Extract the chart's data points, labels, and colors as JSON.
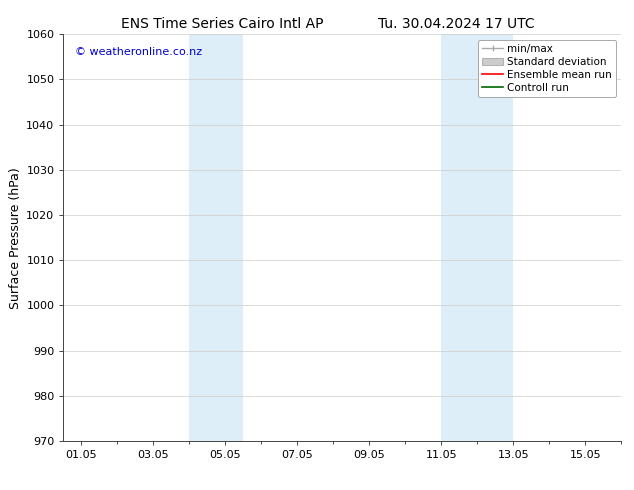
{
  "title_left": "ENS Time Series Cairo Intl AP",
  "title_right": "Tu. 30.04.2024 17 UTC",
  "ylabel": "Surface Pressure (hPa)",
  "ylim": [
    970,
    1060
  ],
  "yticks": [
    970,
    980,
    990,
    1000,
    1010,
    1020,
    1030,
    1040,
    1050,
    1060
  ],
  "xtick_labels": [
    "01.05",
    "03.05",
    "05.05",
    "07.05",
    "09.05",
    "11.05",
    "13.05",
    "15.05"
  ],
  "xtick_positions": [
    1,
    3,
    5,
    7,
    9,
    11,
    13,
    15
  ],
  "xlim": [
    0.5,
    16.0
  ],
  "shaded_bands": [
    {
      "x_start": 4.0,
      "x_end": 5.5,
      "color": "#ddeef8"
    },
    {
      "x_start": 11.0,
      "x_end": 13.0,
      "color": "#ddeef8"
    }
  ],
  "watermark_text": "© weatheronline.co.nz",
  "watermark_color": "#0000cc",
  "watermark_fontsize": 8,
  "background_color": "#ffffff",
  "plot_bg_color": "#ffffff",
  "legend_entries": [
    {
      "label": "min/max"
    },
    {
      "label": "Standard deviation"
    },
    {
      "label": "Ensemble mean run"
    },
    {
      "label": "Controll run"
    }
  ],
  "legend_colors": [
    "#aaaaaa",
    "#cccccc",
    "#ff0000",
    "#006600"
  ],
  "title_fontsize": 10,
  "tick_fontsize": 8,
  "ylabel_fontsize": 9,
  "legend_fontsize": 7.5
}
